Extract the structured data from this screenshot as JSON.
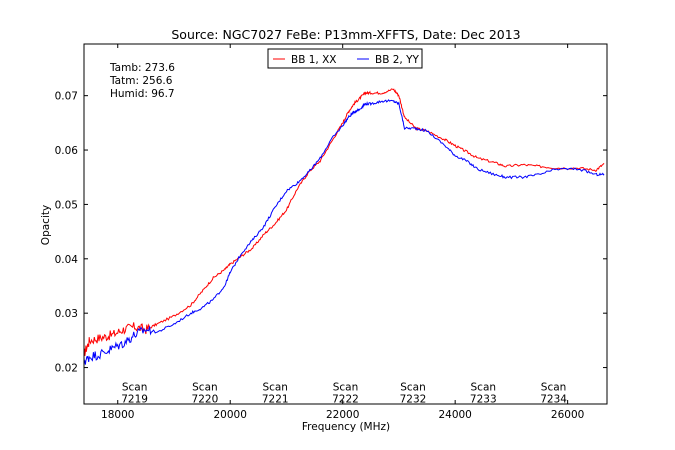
{
  "chart_data": {
    "type": "line",
    "title": "Source: NGC7027 FeBe: P13mm-XFFTS, Date: Dec 2013",
    "xlabel": "Frequency (MHz)",
    "ylabel": "Opacity",
    "xlim": [
      17400,
      26700
    ],
    "ylim": [
      0.0133,
      0.0795
    ],
    "xticks": [
      18000,
      20000,
      22000,
      24000,
      26000
    ],
    "yticks": [
      0.02,
      0.03,
      0.04,
      0.05,
      0.06,
      0.07
    ],
    "xtick_labels": [
      "18000",
      "20000",
      "22000",
      "24000",
      "26000"
    ],
    "ytick_labels": [
      "0.02",
      "0.03",
      "0.04",
      "0.05",
      "0.06",
      "0.07"
    ],
    "legend_position": "top-center",
    "grid": false,
    "series": [
      {
        "name": "BB 1, XX",
        "color": "#ff0000",
        "x": [
          17400,
          17500,
          17700,
          17900,
          18100,
          18300,
          18500,
          18700,
          19000,
          19300,
          19500,
          19700,
          19900,
          20000,
          20200,
          20400,
          20600,
          20800,
          21000,
          21200,
          21400,
          21600,
          21800,
          22000,
          22100,
          22200,
          22300,
          22400,
          22500,
          22700,
          22900,
          23000,
          23100,
          23300,
          23500,
          23800,
          24000,
          24200,
          24400,
          24700,
          24900,
          25200,
          25500,
          25800,
          26200,
          26500,
          26650
        ],
        "y": [
          0.0225,
          0.025,
          0.0255,
          0.026,
          0.027,
          0.0275,
          0.027,
          0.028,
          0.0295,
          0.0315,
          0.034,
          0.0365,
          0.038,
          0.039,
          0.0405,
          0.042,
          0.0445,
          0.0465,
          0.049,
          0.053,
          0.056,
          0.058,
          0.0615,
          0.065,
          0.067,
          0.0685,
          0.0695,
          0.0705,
          0.0705,
          0.0705,
          0.0712,
          0.07,
          0.066,
          0.064,
          0.0635,
          0.062,
          0.0608,
          0.0597,
          0.0585,
          0.0577,
          0.057,
          0.0573,
          0.057,
          0.0567,
          0.0567,
          0.0563,
          0.0575
        ]
      },
      {
        "name": "BB 2, YY",
        "color": "#0000ff",
        "x": [
          17400,
          17500,
          17700,
          17900,
          18100,
          18300,
          18500,
          18700,
          19000,
          19300,
          19500,
          19700,
          19900,
          20000,
          20200,
          20400,
          20600,
          20800,
          21000,
          21200,
          21400,
          21600,
          21800,
          22000,
          22100,
          22200,
          22300,
          22400,
          22500,
          22700,
          22900,
          23000,
          23100,
          23300,
          23500,
          23800,
          24000,
          24200,
          24400,
          24700,
          24900,
          25200,
          25500,
          25800,
          26200,
          26500,
          26650
        ],
        "y": [
          0.021,
          0.022,
          0.0225,
          0.0235,
          0.0245,
          0.026,
          0.027,
          0.0265,
          0.028,
          0.03,
          0.031,
          0.0325,
          0.035,
          0.0375,
          0.041,
          0.0435,
          0.046,
          0.0495,
          0.0525,
          0.054,
          0.056,
          0.0585,
          0.062,
          0.0645,
          0.066,
          0.067,
          0.0675,
          0.0685,
          0.0685,
          0.069,
          0.069,
          0.0685,
          0.064,
          0.064,
          0.0635,
          0.061,
          0.059,
          0.058,
          0.0565,
          0.0555,
          0.055,
          0.055,
          0.0555,
          0.0565,
          0.0565,
          0.0555,
          0.0555
        ]
      }
    ],
    "info_lines": [
      "Tamb: 273.6",
      "Tatm: 256.6",
      "Humid: 96.7"
    ],
    "scan_annotations": [
      {
        "line1": "Scan",
        "line2": "7219",
        "x": 18300
      },
      {
        "line1": "Scan",
        "line2": "7220",
        "x": 19550
      },
      {
        "line1": "Scan",
        "line2": "7221",
        "x": 20800
      },
      {
        "line1": "Scan",
        "line2": "7222",
        "x": 22050
      },
      {
        "line1": "Scan",
        "line2": "7232",
        "x": 23250
      },
      {
        "line1": "Scan",
        "line2": "7233",
        "x": 24500
      },
      {
        "line1": "Scan",
        "line2": "7234",
        "x": 25750
      }
    ],
    "scan_annotation_y": 0.0158
  }
}
